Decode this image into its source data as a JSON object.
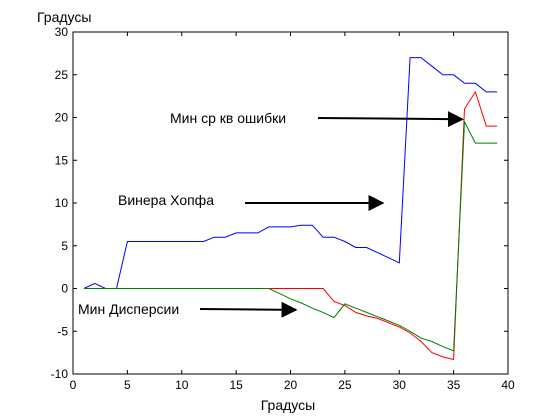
{
  "chart_data": {
    "type": "line",
    "xlabel": "Градусы",
    "ylabel": "Градусы",
    "xlim": [
      0,
      40
    ],
    "ylim": [
      -10,
      30
    ],
    "xticks": [
      0,
      5,
      10,
      15,
      20,
      25,
      30,
      35,
      40
    ],
    "yticks": [
      -10,
      -5,
      0,
      5,
      10,
      15,
      20,
      25,
      30
    ],
    "grid": false,
    "series": [
      {
        "color": "#0000ff",
        "x": [
          1,
          2,
          3,
          4,
          5,
          6,
          7,
          8,
          9,
          10,
          11,
          12,
          13,
          14,
          15,
          16,
          17,
          18,
          19,
          20,
          21,
          22,
          23,
          24,
          25,
          26,
          27,
          28,
          29,
          30,
          31,
          32,
          33,
          34,
          35,
          36,
          37,
          38,
          39
        ],
        "values": [
          0,
          0.6,
          0,
          0,
          5.5,
          5.5,
          5.5,
          5.5,
          5.5,
          5.5,
          5.5,
          5.5,
          6.0,
          6.0,
          6.5,
          6.5,
          6.5,
          7.2,
          7.2,
          7.2,
          7.4,
          7.4,
          6.0,
          6.0,
          5.5,
          4.8,
          4.8,
          4.2,
          3.6,
          3.0,
          27.0,
          27.0,
          26.0,
          25.0,
          25.0,
          24.0,
          24.0,
          23.0,
          23.0
        ]
      },
      {
        "color": "#ff0000",
        "x": [
          1,
          5,
          10,
          15,
          18,
          19,
          20,
          21,
          22,
          23,
          24,
          25,
          26,
          27,
          28,
          29,
          30,
          31,
          32,
          33,
          34,
          35,
          36,
          37,
          38,
          39
        ],
        "values": [
          0,
          0,
          0,
          0,
          0,
          0,
          0,
          0,
          0,
          0,
          -1.5,
          -2.0,
          -2.8,
          -3.2,
          -3.5,
          -4.0,
          -4.5,
          -5.2,
          -6.2,
          -7.5,
          -8.0,
          -8.3,
          21.0,
          23.0,
          19.0,
          19.0
        ]
      },
      {
        "color": "#007f00",
        "x": [
          1,
          5,
          10,
          15,
          18,
          19,
          20,
          21,
          22,
          23,
          24,
          25,
          26,
          27,
          28,
          29,
          30,
          31,
          32,
          33,
          34,
          35,
          36,
          37,
          38,
          39
        ],
        "values": [
          0,
          0,
          0,
          0,
          0,
          -0.6,
          -1.2,
          -1.7,
          -2.3,
          -2.8,
          -3.4,
          -1.8,
          -2.3,
          -2.8,
          -3.3,
          -3.8,
          -4.3,
          -5.0,
          -5.8,
          -6.2,
          -6.8,
          -7.3,
          19.5,
          17.0,
          17.0,
          17.0
        ]
      }
    ],
    "annotations": [
      {
        "text": "Мин ср кв ошибки",
        "arrow_to_x": 35.8,
        "arrow_to_y": 19.8
      },
      {
        "text": "Винера Хопфа",
        "arrow_to_x": 28.5,
        "arrow_to_y": 10.0
      },
      {
        "text": "Мин Дисперсии",
        "arrow_to_x": 20.5,
        "arrow_to_y": -2.5
      }
    ]
  }
}
